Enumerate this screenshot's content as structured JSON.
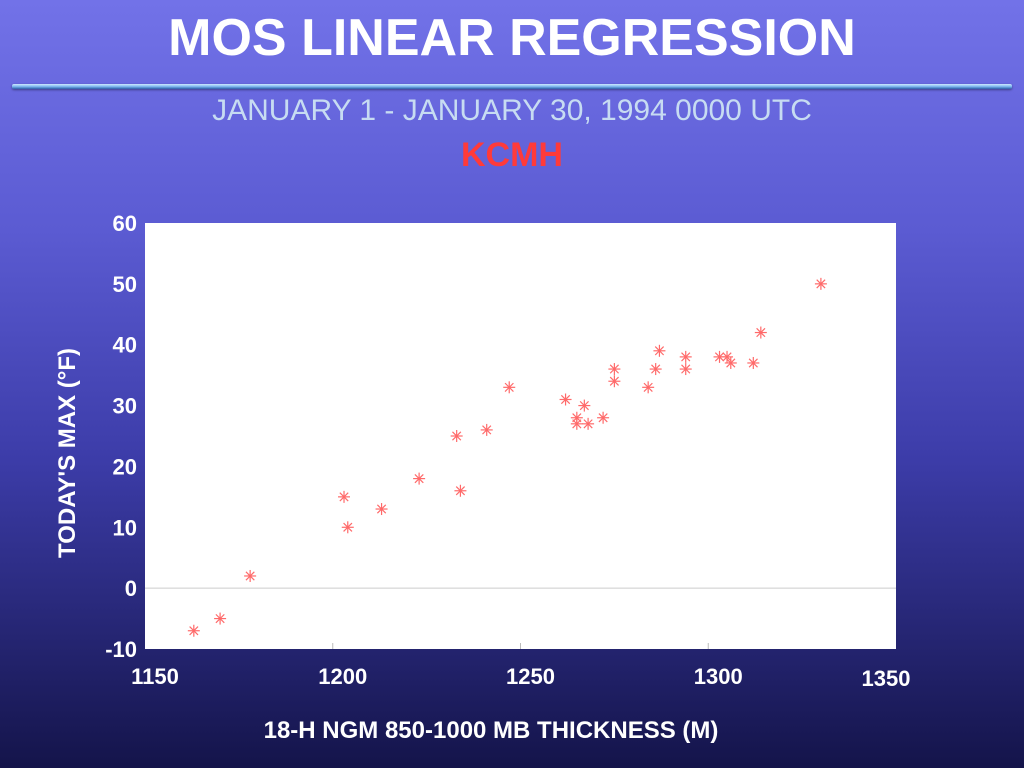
{
  "header": {
    "title": "MOS LINEAR REGRESSION",
    "subtitle": "JANUARY 1 - JANUARY 30,  1994   0000 UTC",
    "station": "KCMH"
  },
  "chart_data": {
    "type": "scatter",
    "title": "MOS LINEAR REGRESSION",
    "xlabel": "18-H NGM 850-1000 MB THICKNESS (M)",
    "ylabel": "TODAY'S MAX (°F)",
    "xlim": [
      1150,
      1350
    ],
    "ylim": [
      -10,
      60
    ],
    "xticks": [
      1150,
      1200,
      1250,
      1300,
      1350
    ],
    "yticks": [
      60,
      50,
      40,
      30,
      20,
      10,
      0,
      -10
    ],
    "grid": "horizontal line at 0",
    "marker_color": "#ff6a6a",
    "series": [
      {
        "points": [
          {
            "x": 1163,
            "y": -7
          },
          {
            "x": 1170,
            "y": -5
          },
          {
            "x": 1178,
            "y": 2
          },
          {
            "x": 1203,
            "y": 15
          },
          {
            "x": 1204,
            "y": 10
          },
          {
            "x": 1213,
            "y": 13
          },
          {
            "x": 1223,
            "y": 18
          },
          {
            "x": 1233,
            "y": 25
          },
          {
            "x": 1234,
            "y": 16
          },
          {
            "x": 1241,
            "y": 26
          },
          {
            "x": 1247,
            "y": 33
          },
          {
            "x": 1262,
            "y": 31
          },
          {
            "x": 1265,
            "y": 28
          },
          {
            "x": 1265,
            "y": 27
          },
          {
            "x": 1267,
            "y": 30
          },
          {
            "x": 1268,
            "y": 27
          },
          {
            "x": 1272,
            "y": 28
          },
          {
            "x": 1275,
            "y": 36
          },
          {
            "x": 1275,
            "y": 34
          },
          {
            "x": 1284,
            "y": 33
          },
          {
            "x": 1286,
            "y": 36
          },
          {
            "x": 1287,
            "y": 39
          },
          {
            "x": 1294,
            "y": 38
          },
          {
            "x": 1294,
            "y": 36
          },
          {
            "x": 1303,
            "y": 38
          },
          {
            "x": 1305,
            "y": 38
          },
          {
            "x": 1306,
            "y": 37
          },
          {
            "x": 1312,
            "y": 37
          },
          {
            "x": 1314,
            "y": 42
          },
          {
            "x": 1330,
            "y": 50
          }
        ]
      }
    ]
  }
}
